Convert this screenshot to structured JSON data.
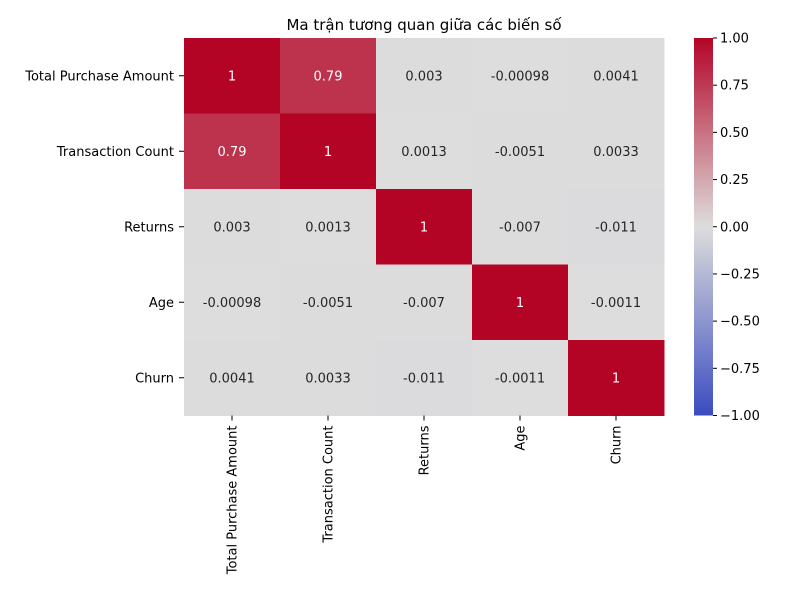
{
  "chart_data": {
    "type": "heatmap",
    "title": "Ma trận tương quan giữa các biến số",
    "xlabel": "",
    "ylabel": "",
    "rows": [
      "Total Purchase Amount",
      "Transaction Count",
      "Returns",
      "Age",
      "Churn"
    ],
    "columns": [
      "Total Purchase Amount",
      "Transaction Count",
      "Returns",
      "Age",
      "Churn"
    ],
    "values": [
      [
        1,
        0.79,
        0.003,
        -0.00098,
        0.0041
      ],
      [
        0.79,
        1,
        0.0013,
        -0.0051,
        0.0033
      ],
      [
        0.003,
        0.0013,
        1,
        -0.007,
        -0.011
      ],
      [
        -0.00098,
        -0.0051,
        -0.007,
        1,
        -0.0011
      ],
      [
        0.0041,
        0.0033,
        -0.011,
        -0.0011,
        1
      ]
    ],
    "annotations": [
      [
        "1",
        "0.79",
        "0.003",
        "-0.00098",
        "0.0041"
      ],
      [
        "0.79",
        "1",
        "0.0013",
        "-0.0051",
        "0.0033"
      ],
      [
        "0.003",
        "0.0013",
        "1",
        "-0.007",
        "-0.011"
      ],
      [
        "-0.00098",
        "-0.0051",
        "-0.007",
        "1",
        "-0.0011"
      ],
      [
        "0.0041",
        "0.0033",
        "-0.011",
        "-0.0011",
        "1"
      ]
    ],
    "colorbar": {
      "range": [
        -1.0,
        1.0
      ],
      "ticks": [
        1.0,
        0.75,
        0.5,
        0.25,
        0.0,
        -0.25,
        -0.5,
        -0.75,
        -1.0
      ],
      "tick_labels": [
        "1.00",
        "0.75",
        "0.50",
        "0.25",
        "0.00",
        "−0.25",
        "−0.50",
        "−0.75",
        "−1.00"
      ],
      "colormap": "coolwarm",
      "colors": [
        "#3b4cc0",
        "#dddddd",
        "#b40426"
      ]
    },
    "grid": false
  }
}
